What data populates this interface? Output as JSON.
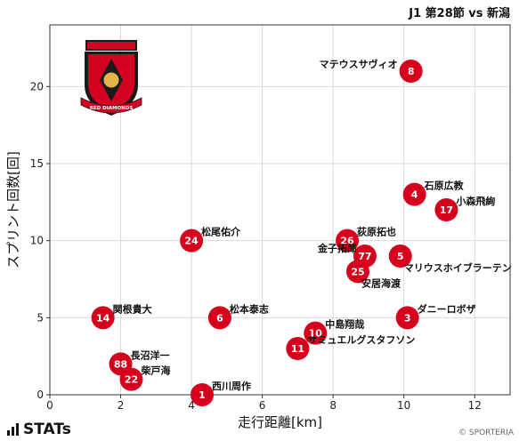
{
  "header": {
    "title": "J1 第28節 vs 新潟"
  },
  "footer": {
    "brand": "STATs",
    "copyright": "© SPORTERIA"
  },
  "logo": {
    "text": "RED DIAMONDS",
    "colors": {
      "red": "#d4001f",
      "black": "#1a1a1a",
      "gold": "#e3b64a"
    }
  },
  "colors": {
    "marker": "#d6001c",
    "marker_text": "#ffffff",
    "grid": "#d9d9d9",
    "axis": "#333333"
  },
  "chart_data": {
    "type": "scatter",
    "title": "J1 第28節 vs 新潟",
    "xlabel": "走行距離[km]",
    "ylabel": "スプリント回数[回]",
    "xlim": [
      0,
      13
    ],
    "ylim": [
      0,
      24
    ],
    "xticks": [
      0,
      2,
      4,
      6,
      8,
      10,
      12
    ],
    "yticks": [
      0,
      5,
      10,
      15,
      20
    ],
    "grid": true,
    "points": [
      {
        "number": "8",
        "name": "マテウスサヴィオ",
        "x": 10.2,
        "y": 21,
        "label_pos": "left"
      },
      {
        "number": "4",
        "name": "石原広教",
        "x": 10.3,
        "y": 13,
        "label_pos": "upper-right"
      },
      {
        "number": "17",
        "name": "小森飛絢",
        "x": 11.2,
        "y": 12,
        "label_pos": "upper-right"
      },
      {
        "number": "24",
        "name": "松尾佑介",
        "x": 4.0,
        "y": 10,
        "label_pos": "upper-right"
      },
      {
        "number": "26",
        "name": "荻原拓也",
        "x": 8.4,
        "y": 10,
        "label_pos": "upper-right"
      },
      {
        "number": "5",
        "name": "マリウスホイブラーテン",
        "x": 9.9,
        "y": 9,
        "label_pos": "lower-right"
      },
      {
        "number": "77",
        "name": "金子拓郎",
        "x": 8.9,
        "y": 9,
        "label_pos": "upper-left"
      },
      {
        "number": "25",
        "name": "安居海渡",
        "x": 8.7,
        "y": 8,
        "label_pos": "lower-right"
      },
      {
        "number": "14",
        "name": "関根貴大",
        "x": 1.5,
        "y": 5,
        "label_pos": "upper-right"
      },
      {
        "number": "6",
        "name": "松本泰志",
        "x": 4.8,
        "y": 5,
        "label_pos": "upper-right"
      },
      {
        "number": "3",
        "name": "ダニーロボザ",
        "x": 10.1,
        "y": 5,
        "label_pos": "upper-right"
      },
      {
        "number": "10",
        "name": "中島翔哉",
        "x": 7.5,
        "y": 4,
        "label_pos": "upper-right"
      },
      {
        "number": "11",
        "name": "サミュエルグスタフソン",
        "x": 7.0,
        "y": 3,
        "label_pos": "upper-right"
      },
      {
        "number": "88",
        "name": "長沼洋一",
        "x": 2.0,
        "y": 2,
        "label_pos": "upper-right"
      },
      {
        "number": "22",
        "name": "柴戸海",
        "x": 2.3,
        "y": 1,
        "label_pos": "upper-right"
      },
      {
        "number": "1",
        "name": "西川周作",
        "x": 4.3,
        "y": 0,
        "label_pos": "upper-right"
      }
    ]
  }
}
